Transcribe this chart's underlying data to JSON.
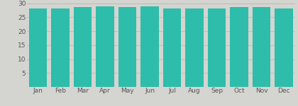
{
  "categories": [
    "Jan",
    "Feb",
    "Mar",
    "Apr",
    "May",
    "Jun",
    "Jul",
    "Aug",
    "Sep",
    "Oct",
    "Nov",
    "Dec"
  ],
  "values": [
    28.0,
    28.0,
    28.5,
    28.8,
    28.5,
    28.8,
    28.2,
    28.2,
    28.0,
    28.5,
    28.5,
    28.2
  ],
  "bar_color": "#2dbdaa",
  "background_color": "#d4d4d0",
  "ylim": [
    0,
    30
  ],
  "yticks": [
    5,
    10,
    15,
    20,
    25,
    30
  ],
  "grid_color": "#bbbbbb",
  "tick_color": "#555555",
  "tick_fontsize": 6.5,
  "bar_width": 0.82
}
